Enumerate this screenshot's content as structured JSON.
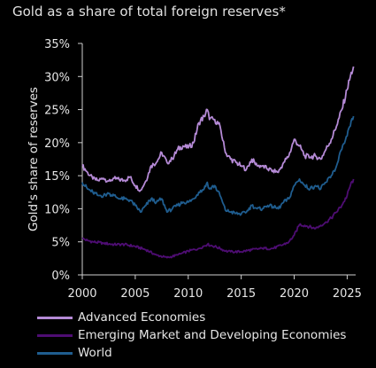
{
  "title": "Gold as a share of total foreign reserves*",
  "colors": {
    "background": "#000000",
    "advanced": "#b58ad6",
    "emerging": "#4e0d73",
    "world": "#1f5d8f",
    "axis": "#cfcfcf"
  },
  "chart_data": {
    "type": "line",
    "title": "Gold as a share of total foreign reserves*",
    "xlabel": "",
    "ylabel": "Gold's share of reserves",
    "xlim": [
      2000,
      2025.8
    ],
    "ylim": [
      0,
      35
    ],
    "x_ticks": [
      2000,
      2005,
      2010,
      2015,
      2020,
      2025
    ],
    "y_ticks": [
      0,
      5,
      10,
      15,
      20,
      25,
      30,
      35
    ],
    "y_tick_labels": [
      "0%",
      "5%",
      "10%",
      "15%",
      "20%",
      "25%",
      "30%",
      "35%"
    ],
    "grid": false,
    "legend_position": "bottom",
    "series": [
      {
        "name": "Advanced Economies",
        "x": [
          2000,
          2000.5,
          2001,
          2001.5,
          2002,
          2002.5,
          2003,
          2003.5,
          2004,
          2004.5,
          2005,
          2005.5,
          2006,
          2006.5,
          2007,
          2007.5,
          2008,
          2008.5,
          2009,
          2009.5,
          2010,
          2010.5,
          2011,
          2011.5,
          2011.8,
          2012,
          2012.5,
          2013,
          2013.5,
          2014,
          2014.5,
          2015,
          2015.5,
          2016,
          2016.5,
          2017,
          2017.5,
          2018,
          2018.5,
          2019,
          2019.5,
          2020,
          2020.5,
          2021,
          2021.5,
          2022,
          2022.5,
          2023,
          2023.5,
          2024,
          2024.5,
          2025,
          2025.3,
          2025.6
        ],
        "values": [
          16.5,
          15.5,
          14.5,
          14.3,
          14.6,
          14.2,
          14.6,
          14.4,
          14.3,
          14.8,
          13.5,
          12.8,
          14.2,
          16.5,
          17.0,
          18.5,
          17.0,
          17.5,
          19.0,
          19.5,
          19.2,
          20.0,
          23.0,
          24.0,
          25.0,
          23.5,
          23.5,
          22.5,
          18.5,
          17.5,
          17.0,
          16.5,
          16.0,
          17.5,
          16.5,
          16.5,
          16.0,
          15.8,
          15.5,
          17.0,
          18.0,
          20.5,
          19.5,
          18.0,
          17.8,
          18.0,
          17.5,
          19.0,
          20.5,
          22.5,
          25.0,
          28.0,
          30.0,
          31.5
        ]
      },
      {
        "name": "Emerging Market and Developing Economies",
        "x": [
          2000,
          2000.5,
          2001,
          2002,
          2003,
          2004,
          2005,
          2006,
          2007,
          2008,
          2009,
          2010,
          2011,
          2011.8,
          2012.5,
          2013,
          2013.5,
          2014,
          2015,
          2016,
          2017,
          2018,
          2019,
          2019.5,
          2020,
          2020.5,
          2021,
          2022,
          2022.5,
          2023,
          2023.5,
          2024,
          2024.5,
          2025,
          2025.3,
          2025.6
        ],
        "values": [
          5.5,
          5.2,
          5.0,
          4.8,
          4.6,
          4.6,
          4.3,
          3.8,
          3.0,
          2.6,
          3.0,
          3.6,
          4.0,
          4.6,
          4.3,
          4.0,
          3.6,
          3.5,
          3.5,
          3.8,
          4.0,
          4.0,
          4.6,
          5.0,
          6.0,
          7.6,
          7.5,
          7.0,
          7.5,
          8.0,
          8.6,
          9.5,
          10.5,
          12.0,
          13.5,
          14.5
        ]
      },
      {
        "name": "World",
        "x": [
          2000,
          2000.5,
          2001,
          2001.5,
          2002,
          2002.5,
          2003,
          2003.5,
          2004,
          2004.5,
          2005,
          2005.5,
          2006,
          2006.5,
          2007,
          2007.5,
          2008,
          2008.5,
          2009,
          2009.5,
          2010,
          2010.5,
          2011,
          2011.5,
          2011.8,
          2012,
          2012.5,
          2013,
          2013.5,
          2014,
          2014.5,
          2015,
          2015.5,
          2016,
          2016.5,
          2017,
          2017.5,
          2018,
          2018.5,
          2019,
          2019.5,
          2020,
          2020.5,
          2021,
          2021.5,
          2022,
          2022.5,
          2023,
          2023.5,
          2024,
          2024.5,
          2025,
          2025.3,
          2025.6
        ],
        "values": [
          14.0,
          13.0,
          12.5,
          12.0,
          12.0,
          12.3,
          12.0,
          11.5,
          11.5,
          11.3,
          10.5,
          9.5,
          10.5,
          11.5,
          11.0,
          11.5,
          9.5,
          10.0,
          10.5,
          11.0,
          11.0,
          11.5,
          12.5,
          13.0,
          14.0,
          13.0,
          13.5,
          12.0,
          9.8,
          9.5,
          9.3,
          9.2,
          9.5,
          10.5,
          10.0,
          10.0,
          10.5,
          10.3,
          10.0,
          11.0,
          11.5,
          13.5,
          14.5,
          13.5,
          13.0,
          13.5,
          13.0,
          14.0,
          15.0,
          16.5,
          19.0,
          21.0,
          22.5,
          24.0
        ]
      }
    ]
  }
}
